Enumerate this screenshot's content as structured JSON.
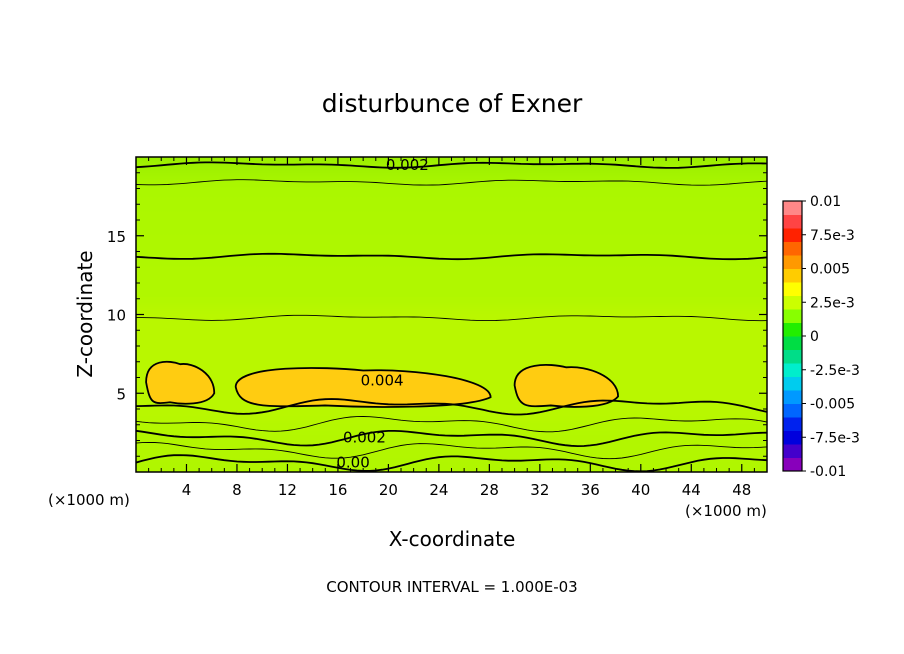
{
  "chart_data": {
    "type": "heatmap",
    "title": "disturbunce of Exner",
    "xlabel": "X-coordinate",
    "ylabel": "Z-coordinate",
    "xunit_left": "(×1000 m)",
    "xunit_right": "(×1000 m)",
    "footer": "CONTOUR INTERVAL = 1.000E-03",
    "xlim": [
      0,
      50
    ],
    "ylim": [
      0,
      20
    ],
    "xticks": [
      4,
      8,
      12,
      16,
      20,
      24,
      28,
      32,
      36,
      40,
      44,
      48
    ],
    "xtick_labels": [
      "4",
      "8",
      "12",
      "16",
      "20",
      "24",
      "28",
      "32",
      "36",
      "40",
      "44",
      "48"
    ],
    "yticks": [
      5,
      10,
      15
    ],
    "ytick_labels": [
      "5",
      "10",
      "15"
    ],
    "colorbar": {
      "min": -0.01,
      "max": 0.01,
      "labels": [
        {
          "value": 0.01,
          "text": "0.01"
        },
        {
          "value": 0.0075,
          "text": "7.5e-3"
        },
        {
          "value": 0.005,
          "text": "0.005"
        },
        {
          "value": 0.0025,
          "text": "2.5e-3"
        },
        {
          "value": 0,
          "text": "0"
        },
        {
          "value": -0.0025,
          "text": "-2.5e-3"
        },
        {
          "value": -0.005,
          "text": "-0.005"
        },
        {
          "value": -0.0075,
          "text": "-7.5e-3"
        },
        {
          "value": -0.01,
          "text": "-0.01"
        }
      ],
      "colors": [
        "#8800bb",
        "#4400cc",
        "#0000dd",
        "#0022ee",
        "#0066ff",
        "#0099ff",
        "#00ccee",
        "#00eecc",
        "#00dd88",
        "#00dd44",
        "#22ee00",
        "#88ff00",
        "#ccff00",
        "#ffff00",
        "#ffcc00",
        "#ff9900",
        "#ff6600",
        "#ff2200",
        "#ff4444",
        "#ff8888"
      ]
    },
    "levels": [
      {
        "name": "z0",
        "z": 0.6,
        "color": "#22dd00"
      },
      {
        "name": "z1",
        "z": 1.4,
        "color": "#44ee00"
      },
      {
        "name": "z2",
        "z": 2.2,
        "color": "#77ee00"
      },
      {
        "name": "z3",
        "z": 3.1,
        "color": "#aaff00"
      },
      {
        "name": "z4",
        "z": 4.2,
        "color": "#ddff00"
      },
      {
        "name": "z9",
        "z": 9.8,
        "color": "#ffff00"
      },
      {
        "name": "z13",
        "z": 13.7,
        "color": "#ccff00"
      },
      {
        "name": "z18",
        "z": 18.4,
        "color": "#bbff00"
      },
      {
        "name": "z19",
        "z": 19.5,
        "color": "#99ee00"
      }
    ],
    "contour_labels": [
      {
        "text": "0.002",
        "x": 21.5,
        "z": 19.5
      },
      {
        "text": "0.004",
        "x": 19.5,
        "z": 5.8
      },
      {
        "text": "0.002",
        "x": 18.1,
        "z": 2.2
      },
      {
        "text": "0.00",
        "x": 17.2,
        "z": 0.6
      }
    ],
    "maxima": [
      {
        "name": "cell-1",
        "x": [
          0.8,
          6.2
        ],
        "z": [
          4.3,
          7.1
        ]
      },
      {
        "name": "cell-2",
        "x": [
          7.9,
          28.1
        ],
        "z": [
          4.1,
          6.7
        ]
      },
      {
        "name": "cell-3",
        "x": [
          30.0,
          38.2
        ],
        "z": [
          4.1,
          6.9
        ]
      }
    ]
  }
}
